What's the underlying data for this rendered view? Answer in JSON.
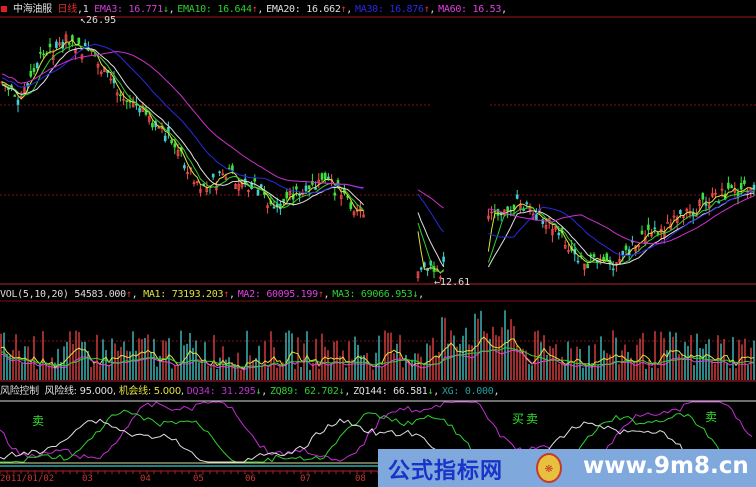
{
  "main": {
    "stock_name": "中海油服",
    "period": "日线",
    "period_num": "1",
    "indicators": [
      {
        "name": "EMA3",
        "value": "16.771",
        "trend": "↓",
        "color": "#d040d0"
      },
      {
        "name": "EMA10",
        "value": "16.644",
        "trend": "↑",
        "color": "#30d030"
      },
      {
        "name": "EMA20",
        "value": "16.662",
        "trend": "↑",
        "color": "#e0e0e0"
      },
      {
        "name": "MA30",
        "value": "16.876",
        "trend": "↑",
        "color": "#2a2ae0"
      },
      {
        "name": "MA60",
        "value": "16.53",
        "trend": "",
        "color": "#e040e0"
      }
    ],
    "high_label": "26.95",
    "low_label": "12.61"
  },
  "volume": {
    "title": "VOL(5,10,20)",
    "value": "54583.000",
    "value_trend": "↑",
    "indicators": [
      {
        "name": "MA1",
        "value": "73193.203",
        "trend": "↑",
        "color": "#e0e040"
      },
      {
        "name": "MA2",
        "value": "60095.199",
        "trend": "↑",
        "color": "#e040e0"
      },
      {
        "name": "MA3",
        "value": "69066.953",
        "trend": "↓",
        "color": "#30d030"
      }
    ]
  },
  "risk": {
    "title": "风险控制",
    "indicators": [
      {
        "name": "风险线",
        "value": "95.000",
        "trend": "",
        "color": "#e0e0e0"
      },
      {
        "name": "机会线",
        "value": "5.000",
        "trend": "",
        "color": "#e0e040"
      },
      {
        "name": "DQ34",
        "value": "31.295",
        "trend": "↓",
        "color": "#c030d0"
      },
      {
        "name": "ZQ89",
        "value": "62.702",
        "trend": "↓",
        "color": "#30d030"
      },
      {
        "name": "ZQ144",
        "value": "66.581",
        "trend": "↓",
        "color": "#e0e0e0"
      },
      {
        "name": "XG",
        "value": "0.000",
        "trend": "",
        "color": "#20a0a0"
      }
    ],
    "signal_buy": "买",
    "signal_sell": "卖"
  },
  "date_axis": [
    "2011/01/02",
    "03",
    "04",
    "05",
    "06",
    "07",
    "08"
  ],
  "watermark": {
    "name": "公式指标网",
    "url": "www.9m8.cn"
  }
}
